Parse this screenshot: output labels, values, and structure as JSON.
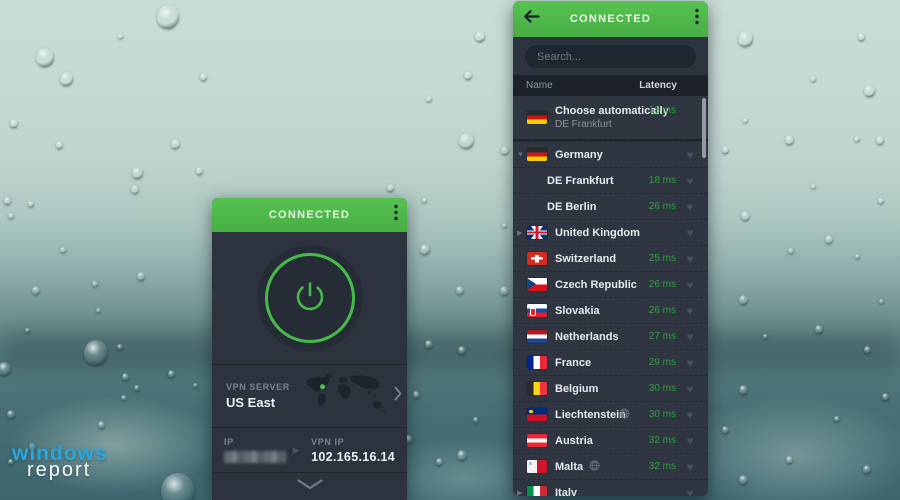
{
  "watermark": {
    "line1": "windows",
    "line2": "report"
  },
  "colors": {
    "accent_green": "#4db848",
    "latency_green": "#2f9e3f",
    "panel_dark": "#2d3440"
  },
  "icons": {
    "heart": "♥",
    "expand_down": "▼",
    "expand_right": "▶",
    "arrow_right": "▶"
  },
  "connected_panel": {
    "title": "CONNECTED",
    "vpn_server_label": "VPN SERVER",
    "vpn_server_value": "US East",
    "ip_label": "IP",
    "vpn_ip_label": "VPN IP",
    "vpn_ip_value": "102.165.16.14"
  },
  "server_list_panel": {
    "title": "CONNECTED",
    "search_placeholder": "Search...",
    "col_name": "Name",
    "col_latency": "Latency",
    "rows": [
      {
        "name": "Choose automatically",
        "subtitle": "DE Frankfurt",
        "flag": "de",
        "latency": "18 ms",
        "heart": false,
        "type": "auto"
      },
      {
        "name": "Germany",
        "flag": "de",
        "expand": "down",
        "latency": "",
        "heart": true
      },
      {
        "name": "DE Frankfurt",
        "child": true,
        "latency": "18 ms",
        "heart": true
      },
      {
        "name": "DE Berlin",
        "child": true,
        "latency": "26 ms",
        "heart": true
      },
      {
        "name": "United Kingdom",
        "flag": "gb",
        "expand": "right",
        "latency": "",
        "heart": true
      },
      {
        "name": "Switzerland",
        "flag": "ch",
        "latency": "25 ms",
        "heart": true
      },
      {
        "name": "Czech Republic",
        "flag": "cz",
        "latency": "26 ms",
        "heart": true
      },
      {
        "name": "Slovakia",
        "flag": "sk",
        "latency": "26 ms",
        "heart": true
      },
      {
        "name": "Netherlands",
        "flag": "nl",
        "latency": "27 ms",
        "heart": true
      },
      {
        "name": "France",
        "flag": "fr",
        "latency": "29 ms",
        "heart": true
      },
      {
        "name": "Belgium",
        "flag": "be",
        "latency": "30 ms",
        "heart": true
      },
      {
        "name": "Liechtenstein",
        "flag": "li",
        "globe": true,
        "latency": "30 ms",
        "heart": true
      },
      {
        "name": "Austria",
        "flag": "at",
        "latency": "32 ms",
        "heart": true
      },
      {
        "name": "Malta",
        "flag": "mt",
        "globe": true,
        "latency": "32 ms",
        "heart": true
      },
      {
        "name": "Italy",
        "flag": "it",
        "expand": "right",
        "latency": "",
        "heart": true
      }
    ]
  }
}
